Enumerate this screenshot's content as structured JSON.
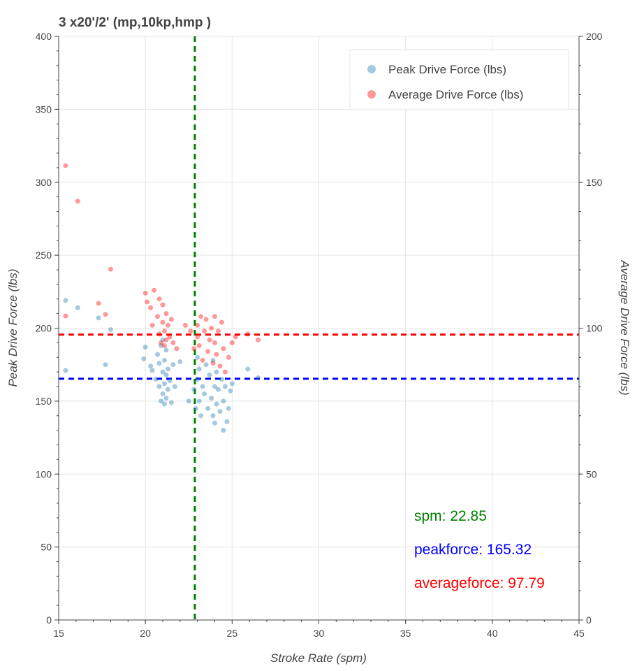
{
  "chart_data": {
    "type": "scatter",
    "title": "3 x20'/2' (mp,10kp,hmp )",
    "xlabel": "Stroke Rate (spm)",
    "ylabel": "Peak Drive Force (lbs)",
    "y2label": "Average Drive Force (lbs)",
    "xlim": [
      15,
      45
    ],
    "ylim": [
      0,
      400
    ],
    "y2lim": [
      0,
      200
    ],
    "xticks": [
      15,
      20,
      25,
      30,
      35,
      40,
      45
    ],
    "yticks": [
      0,
      50,
      100,
      150,
      200,
      250,
      300,
      350,
      400
    ],
    "y2ticks": [
      0,
      50,
      100,
      150,
      200
    ],
    "grid": true,
    "legend_position": "top-right",
    "series": [
      {
        "name": "Peak Drive Force (lbs)",
        "axis": "left",
        "color": "#1f77b4",
        "points": [
          [
            15.4,
            219
          ],
          [
            15.4,
            171
          ],
          [
            16.1,
            214
          ],
          [
            17.3,
            207
          ],
          [
            17.7,
            175
          ],
          [
            18.0,
            199
          ],
          [
            19.9,
            179
          ],
          [
            20.0,
            187
          ],
          [
            20.3,
            174
          ],
          [
            20.4,
            171
          ],
          [
            20.6,
            165
          ],
          [
            20.7,
            182
          ],
          [
            20.8,
            160
          ],
          [
            20.8,
            176
          ],
          [
            20.9,
            150
          ],
          [
            20.9,
            188
          ],
          [
            21.0,
            155
          ],
          [
            21.0,
            170
          ],
          [
            21.0,
            192
          ],
          [
            21.1,
            148
          ],
          [
            21.1,
            162
          ],
          [
            21.1,
            178
          ],
          [
            21.2,
            152
          ],
          [
            21.2,
            168
          ],
          [
            21.2,
            185
          ],
          [
            21.3,
            158
          ],
          [
            21.3,
            172
          ],
          [
            21.4,
            164
          ],
          [
            21.5,
            149
          ],
          [
            21.6,
            175
          ],
          [
            21.7,
            160
          ],
          [
            22.0,
            177
          ],
          [
            22.5,
            150
          ],
          [
            22.8,
            158
          ],
          [
            22.9,
            145
          ],
          [
            23.0,
            165
          ],
          [
            23.0,
            180
          ],
          [
            23.1,
            150
          ],
          [
            23.1,
            172
          ],
          [
            23.2,
            140
          ],
          [
            23.3,
            160
          ],
          [
            23.4,
            155
          ],
          [
            23.5,
            175
          ],
          [
            23.6,
            145
          ],
          [
            23.7,
            168
          ],
          [
            23.8,
            152
          ],
          [
            23.9,
            140
          ],
          [
            23.9,
            178
          ],
          [
            24.0,
            160
          ],
          [
            24.0,
            135
          ],
          [
            24.1,
            170
          ],
          [
            24.1,
            148
          ],
          [
            24.2,
            158
          ],
          [
            24.3,
            143
          ],
          [
            24.4,
            165
          ],
          [
            24.5,
            130
          ],
          [
            24.5,
            150
          ],
          [
            24.6,
            160
          ],
          [
            24.7,
            136
          ],
          [
            24.8,
            145
          ],
          [
            24.9,
            157
          ],
          [
            25.0,
            162
          ],
          [
            25.9,
            172
          ],
          [
            26.5,
            166
          ]
        ]
      },
      {
        "name": "Average Drive Force (lbs)",
        "axis": "right",
        "color": "#ff0000",
        "points": [
          [
            15.4,
            155.7
          ],
          [
            16.1,
            143.5
          ],
          [
            18.0,
            120.2
          ],
          [
            17.3,
            108.5
          ],
          [
            17.7,
            104.7
          ],
          [
            15.4,
            104.2
          ],
          [
            20.0,
            112
          ],
          [
            20.1,
            109
          ],
          [
            20.3,
            107
          ],
          [
            20.4,
            101
          ],
          [
            20.5,
            113
          ],
          [
            20.7,
            104
          ],
          [
            20.8,
            98
          ],
          [
            20.8,
            110
          ],
          [
            20.9,
            95
          ],
          [
            21.0,
            102
          ],
          [
            21.0,
            108
          ],
          [
            21.1,
            94
          ],
          [
            21.1,
            99
          ],
          [
            21.2,
            105
          ],
          [
            21.2,
            96
          ],
          [
            21.3,
            101
          ],
          [
            21.4,
            97
          ],
          [
            21.5,
            103
          ],
          [
            21.6,
            95
          ],
          [
            21.8,
            93
          ],
          [
            22.3,
            101
          ],
          [
            22.6,
            99
          ],
          [
            22.8,
            93
          ],
          [
            23.0,
            101
          ],
          [
            23.0,
            97
          ],
          [
            23.1,
            94
          ],
          [
            23.2,
            104
          ],
          [
            23.3,
            89
          ],
          [
            23.4,
            99
          ],
          [
            23.5,
            103
          ],
          [
            23.6,
            92
          ],
          [
            23.7,
            96
          ],
          [
            23.8,
            100
          ],
          [
            23.9,
            88
          ],
          [
            24.0,
            104
          ],
          [
            24.0,
            95
          ],
          [
            24.1,
            91
          ],
          [
            24.2,
            99
          ],
          [
            24.3,
            87
          ],
          [
            24.4,
            102
          ],
          [
            24.5,
            93
          ],
          [
            24.6,
            85
          ],
          [
            24.8,
            90
          ],
          [
            25.0,
            95
          ],
          [
            25.2,
            97
          ],
          [
            25.9,
            98
          ],
          [
            26.5,
            96
          ]
        ]
      }
    ],
    "reference_lines": [
      {
        "orientation": "vertical",
        "value": 22.85,
        "color": "#008000"
      },
      {
        "orientation": "horizontal",
        "axis": "left",
        "value": 165.32,
        "color": "#0000ff"
      },
      {
        "orientation": "horizontal",
        "axis": "right",
        "value": 97.79,
        "color": "#ff0000"
      }
    ],
    "annotations": [
      {
        "label": "spm:  22.85",
        "color": "#008000"
      },
      {
        "label": "peakforce: 165.32",
        "color": "#0000ff"
      },
      {
        "label": "averageforce:  97.79",
        "color": "#ff0000"
      }
    ]
  }
}
